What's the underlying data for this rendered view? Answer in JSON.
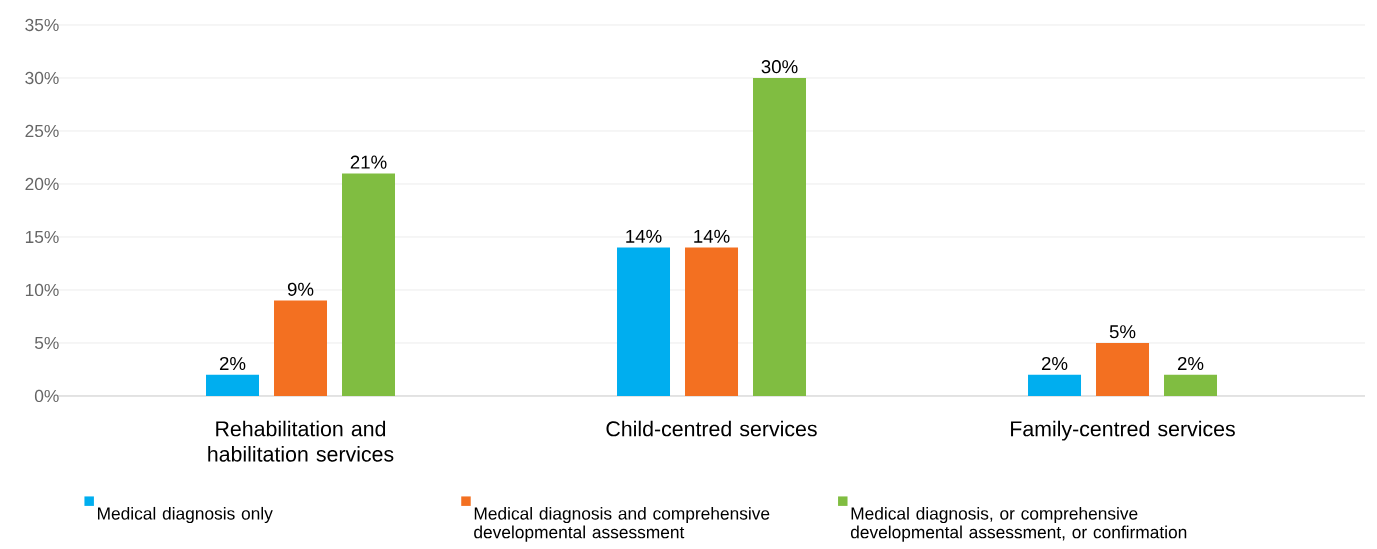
{
  "chart_data": {
    "type": "bar",
    "categories": [
      "Rehabilitation and habilitation services",
      "Child-centred services",
      "Family-centred services"
    ],
    "series": [
      {
        "name": "Medical diagnosis only",
        "color": "#00aeef",
        "values": [
          2,
          14,
          2
        ],
        "value_labels": [
          "2%",
          "14%",
          "2%"
        ]
      },
      {
        "name": "Medical diagnosis and comprehensive developmental assessment",
        "color": "#f37021",
        "values": [
          9,
          14,
          5
        ],
        "value_labels": [
          "9%",
          "14%",
          "5%"
        ]
      },
      {
        "name": "Medical diagnosis, or comprehensive developmental assessment, or confirmation",
        "color": "#80bd41",
        "values": [
          21,
          30,
          2
        ],
        "value_labels": [
          "21%",
          "30%",
          "2%"
        ]
      }
    ],
    "ylim": [
      0,
      35
    ],
    "yticks": [
      {
        "value": 0,
        "label": "0%"
      },
      {
        "value": 5,
        "label": "5%"
      },
      {
        "value": 10,
        "label": "10%"
      },
      {
        "value": 15,
        "label": "15%"
      },
      {
        "value": 20,
        "label": "20%"
      },
      {
        "value": 25,
        "label": "25%"
      },
      {
        "value": 30,
        "label": "30%"
      },
      {
        "value": 35,
        "label": "35%"
      }
    ],
    "grid": "y",
    "legend": "bottom"
  }
}
